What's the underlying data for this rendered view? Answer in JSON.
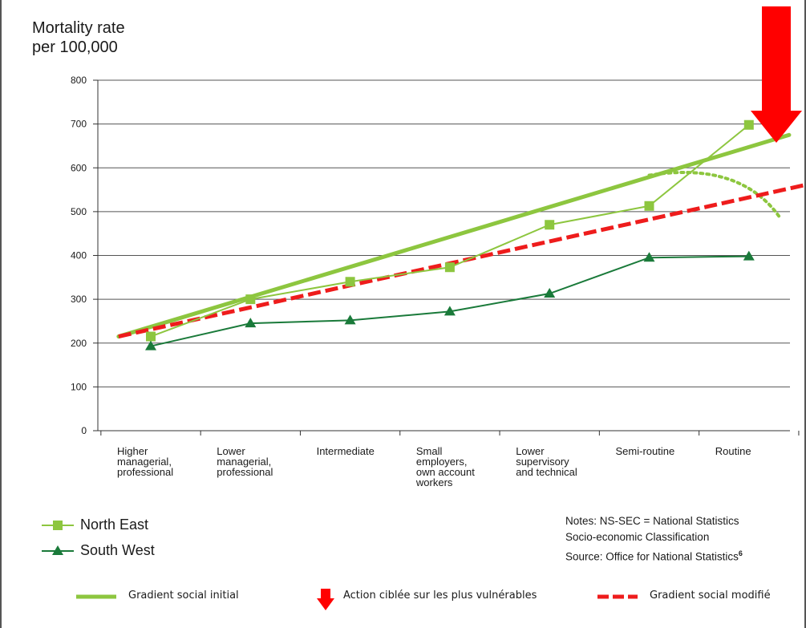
{
  "chart_data": {
    "type": "line",
    "ylabel_lines": [
      "Mortality rate",
      "per 100,000"
    ],
    "categories": [
      "Higher\nmanagerial,\nprofessional",
      "Lower\nmanagerial,\nprofessional",
      "Intermediate",
      "Small\nemployers,\nown account\nworkers",
      "Lower\nsupervisory\nand technical",
      "Semi-routine",
      "Routine"
    ],
    "yticks": [
      "0",
      "100",
      "200",
      "300",
      "400",
      "500",
      "600",
      "700",
      "800"
    ],
    "ylim": [
      0,
      800
    ],
    "grid": true,
    "series": [
      {
        "name": "North East",
        "values": [
          215,
          300,
          340,
          373,
          470,
          513,
          698
        ],
        "color": "#8dc63f",
        "marker": "square"
      },
      {
        "name": "South West",
        "values": [
          193,
          245,
          252,
          272,
          313,
          395,
          398
        ],
        "color": "#1a7a3a",
        "marker": "triangle"
      }
    ],
    "annotations": {
      "initial_gradient": {
        "label": "Gradient social initial",
        "color": "#8dc63f",
        "start": [
          -0.5,
          215
        ],
        "end": [
          6.5,
          675
        ]
      },
      "modified_gradient": {
        "label": "Gradient social modifié",
        "color": "#ee1c1c",
        "start": [
          -0.5,
          215
        ],
        "end": [
          6.5,
          560
        ]
      },
      "targeted_action": {
        "label": "Action ciblée sur les plus vulnérables",
        "color": "#ff0000"
      }
    },
    "legend_placement": "bottom-left"
  },
  "notes": {
    "line1": "Notes: NS-SEC = National Statistics",
    "line2": "Socio-economic Classification",
    "line3_text": "Source: Office for National Statistics",
    "line3_sup": "6"
  }
}
